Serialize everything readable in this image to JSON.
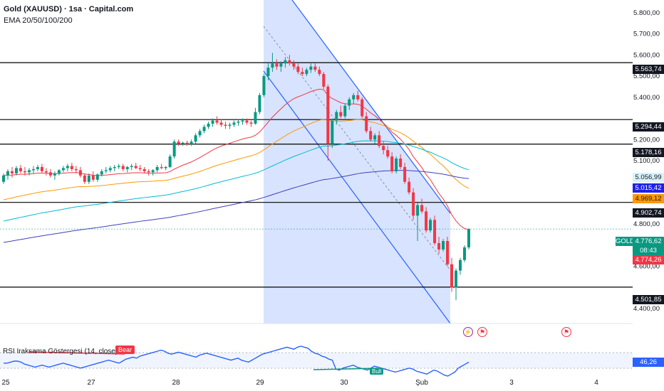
{
  "header": {
    "title": "Gold (XAUUSD) · 1sa · Capital.com",
    "indicator": "EMA 20/50/100/200"
  },
  "rsi": {
    "label": "RSI Iraksama Göstergesi (14, close)",
    "badge_bear": "Bear",
    "badge_bull": "Bull",
    "value_label": "46,26",
    "values": [
      48,
      48,
      49,
      50,
      50,
      49,
      47,
      46,
      45,
      44,
      45,
      46,
      45,
      44,
      45,
      46,
      47,
      48,
      47,
      46,
      45,
      44,
      43,
      44,
      45,
      46,
      47,
      48,
      49,
      50,
      51,
      50,
      49,
      48,
      50,
      52,
      53,
      54,
      53,
      55,
      56,
      57,
      58,
      59,
      60,
      61,
      60,
      58,
      57,
      58,
      59,
      58,
      57,
      56,
      55,
      54,
      56,
      57,
      58,
      57,
      56,
      55,
      54,
      53,
      52,
      51,
      52,
      53,
      51,
      50,
      49,
      51,
      53,
      55,
      57,
      58,
      59,
      60,
      61,
      62,
      63,
      64,
      63,
      62,
      64,
      65,
      64,
      63,
      60,
      58,
      57,
      55,
      54,
      52,
      51,
      42,
      41,
      43,
      44,
      45,
      46,
      44,
      43,
      42,
      41,
      43,
      45,
      44,
      43,
      42,
      41,
      40,
      39,
      40,
      41,
      42,
      43,
      42,
      40,
      39,
      38,
      37,
      39,
      41,
      40,
      38,
      36,
      35,
      37,
      39,
      43,
      45,
      47,
      49
    ]
  },
  "x_axis": [
    "25",
    "27",
    "28",
    "29",
    "30",
    "Şub",
    "3",
    "4"
  ],
  "y_axis": [
    "5.800,00",
    "5.700,00",
    "5.600,00",
    "5.500,00",
    "5.400,00",
    "5.200,00",
    "5.100,00",
    "4.800,00",
    "4.600,00",
    "4.400,00"
  ],
  "events": [
    {
      "icon": "lightning-icon",
      "glyph": "⚡"
    },
    {
      "icon": "us-flag-icon",
      "glyph": "⚑"
    },
    {
      "icon": "us-flag-icon",
      "glyph": "⚑"
    }
  ],
  "price_tags": {
    "l1": "5.563,74",
    "l2": "5.294,44",
    "l3": "5.178,16",
    "ema100": "5.056,99",
    "ema200": "5.015,42",
    "ema50": "4.969,12",
    "l4": "4.902,74",
    "symbol": "GOLD",
    "last": "4.776,62",
    "countdown": "08:43",
    "ema20": "4.774,26",
    "l5": "4.501,85"
  },
  "colors": {
    "up": "#089981",
    "down": "#f23645",
    "ema20": "#f23645",
    "ema50": "#ff9800",
    "ema100": "#00bcd4",
    "ema200": "#3f3fbf",
    "channel": "#2962ff",
    "level": "#000000"
  },
  "chart_data": {
    "type": "candlestick",
    "ylim": [
      4330,
      5860
    ],
    "horizontal_levels": [
      5563.74,
      5294.44,
      5178.16,
      4902.74,
      4501.85
    ],
    "ema_final_values": {
      "ema20": 4774.26,
      "ema50": 4969.12,
      "ema100": 5056.99,
      "ema200": 5015.42
    },
    "last_price": 4776.62,
    "candles": [
      [
        5000,
        5040,
        4990,
        5030
      ],
      [
        5030,
        5060,
        5010,
        5050
      ],
      [
        5050,
        5070,
        5020,
        5040
      ],
      [
        5040,
        5075,
        5030,
        5065
      ],
      [
        5065,
        5080,
        5040,
        5050
      ],
      [
        5050,
        5070,
        5030,
        5045
      ],
      [
        5045,
        5065,
        5030,
        5055
      ],
      [
        5055,
        5075,
        5040,
        5060
      ],
      [
        5060,
        5080,
        5050,
        5070
      ],
      [
        5070,
        5085,
        5040,
        5050
      ],
      [
        5050,
        5065,
        5030,
        5045
      ],
      [
        5045,
        5060,
        5020,
        5030
      ],
      [
        5030,
        5050,
        5010,
        5040
      ],
      [
        5040,
        5060,
        5030,
        5055
      ],
      [
        5055,
        5075,
        5045,
        5065
      ],
      [
        5065,
        5085,
        5050,
        5075
      ],
      [
        5075,
        5090,
        5050,
        5060
      ],
      [
        5060,
        5075,
        5040,
        5055
      ],
      [
        5055,
        5070,
        5020,
        5030
      ],
      [
        5030,
        5040,
        4990,
        5000
      ],
      [
        5000,
        5040,
        4990,
        5030
      ],
      [
        5030,
        5050,
        5000,
        5010
      ],
      [
        5010,
        5040,
        5000,
        5035
      ],
      [
        5035,
        5060,
        5025,
        5050
      ],
      [
        5050,
        5070,
        5040,
        5055
      ],
      [
        5055,
        5075,
        5045,
        5065
      ],
      [
        5065,
        5080,
        5050,
        5070
      ],
      [
        5070,
        5085,
        5060,
        5075
      ],
      [
        5075,
        5085,
        5050,
        5060
      ],
      [
        5060,
        5075,
        5045,
        5070
      ],
      [
        5070,
        5085,
        5055,
        5075
      ],
      [
        5075,
        5090,
        5060,
        5065
      ],
      [
        5065,
        5080,
        5050,
        5060
      ],
      [
        5060,
        5070,
        5040,
        5050
      ],
      [
        5050,
        5060,
        5030,
        5045
      ],
      [
        5045,
        5060,
        5030,
        5055
      ],
      [
        5055,
        5080,
        5045,
        5070
      ],
      [
        5070,
        5085,
        5060,
        5065
      ],
      [
        5065,
        5075,
        5055,
        5070
      ],
      [
        5070,
        5130,
        5065,
        5120
      ],
      [
        5120,
        5200,
        5110,
        5190
      ],
      [
        5190,
        5200,
        5170,
        5180
      ],
      [
        5180,
        5190,
        5170,
        5185
      ],
      [
        5185,
        5195,
        5170,
        5178
      ],
      [
        5178,
        5200,
        5170,
        5190
      ],
      [
        5190,
        5230,
        5180,
        5220
      ],
      [
        5220,
        5250,
        5210,
        5240
      ],
      [
        5240,
        5270,
        5230,
        5260
      ],
      [
        5260,
        5285,
        5250,
        5275
      ],
      [
        5275,
        5300,
        5260,
        5290
      ],
      [
        5290,
        5310,
        5270,
        5280
      ],
      [
        5280,
        5295,
        5260,
        5270
      ],
      [
        5270,
        5285,
        5250,
        5265
      ],
      [
        5265,
        5280,
        5250,
        5270
      ],
      [
        5270,
        5290,
        5260,
        5280
      ],
      [
        5280,
        5295,
        5265,
        5285
      ],
      [
        5285,
        5300,
        5270,
        5290
      ],
      [
        5290,
        5300,
        5270,
        5280
      ],
      [
        5280,
        5290,
        5260,
        5275
      ],
      [
        5275,
        5350,
        5270,
        5330
      ],
      [
        5330,
        5420,
        5320,
        5410
      ],
      [
        5410,
        5510,
        5400,
        5500
      ],
      [
        5500,
        5560,
        5480,
        5540
      ],
      [
        5540,
        5610,
        5520,
        5560
      ],
      [
        5560,
        5580,
        5530,
        5545
      ],
      [
        5545,
        5570,
        5520,
        5560
      ],
      [
        5560,
        5590,
        5540,
        5575
      ],
      [
        5575,
        5600,
        5550,
        5560
      ],
      [
        5560,
        5575,
        5530,
        5545
      ],
      [
        5545,
        5560,
        5510,
        5520
      ],
      [
        5520,
        5540,
        5500,
        5510
      ],
      [
        5510,
        5540,
        5500,
        5530
      ],
      [
        5530,
        5560,
        5515,
        5545
      ],
      [
        5545,
        5560,
        5520,
        5530
      ],
      [
        5530,
        5545,
        5500,
        5510
      ],
      [
        5510,
        5520,
        5440,
        5450
      ],
      [
        5450,
        5460,
        5100,
        5180
      ],
      [
        5180,
        5300,
        5160,
        5290
      ],
      [
        5290,
        5340,
        5270,
        5330
      ],
      [
        5330,
        5360,
        5300,
        5310
      ],
      [
        5310,
        5370,
        5300,
        5360
      ],
      [
        5360,
        5400,
        5340,
        5390
      ],
      [
        5390,
        5420,
        5370,
        5410
      ],
      [
        5410,
        5430,
        5380,
        5390
      ],
      [
        5390,
        5400,
        5300,
        5310
      ],
      [
        5310,
        5330,
        5230,
        5240
      ],
      [
        5240,
        5260,
        5190,
        5200
      ],
      [
        5200,
        5230,
        5180,
        5220
      ],
      [
        5220,
        5240,
        5160,
        5170
      ],
      [
        5170,
        5190,
        5130,
        5150
      ],
      [
        5150,
        5170,
        5110,
        5120
      ],
      [
        5120,
        5140,
        5040,
        5050
      ],
      [
        5050,
        5120,
        5040,
        5110
      ],
      [
        5110,
        5130,
        5060,
        5070
      ],
      [
        5070,
        5090,
        4990,
        5000
      ],
      [
        5000,
        5020,
        4940,
        4950
      ],
      [
        4950,
        4970,
        4820,
        4840
      ],
      [
        4840,
        4900,
        4720,
        4890
      ],
      [
        4890,
        4920,
        4850,
        4860
      ],
      [
        4860,
        4880,
        4760,
        4770
      ],
      [
        4770,
        4830,
        4760,
        4820
      ],
      [
        4820,
        4840,
        4700,
        4710
      ],
      [
        4710,
        4740,
        4660,
        4680
      ],
      [
        4680,
        4730,
        4670,
        4720
      ],
      [
        4720,
        4740,
        4600,
        4610
      ],
      [
        4610,
        4640,
        4480,
        4500
      ],
      [
        4500,
        4590,
        4440,
        4580
      ],
      [
        4580,
        4640,
        4560,
        4630
      ],
      [
        4630,
        4700,
        4620,
        4690
      ],
      [
        4690,
        4780,
        4680,
        4776.62
      ]
    ]
  }
}
